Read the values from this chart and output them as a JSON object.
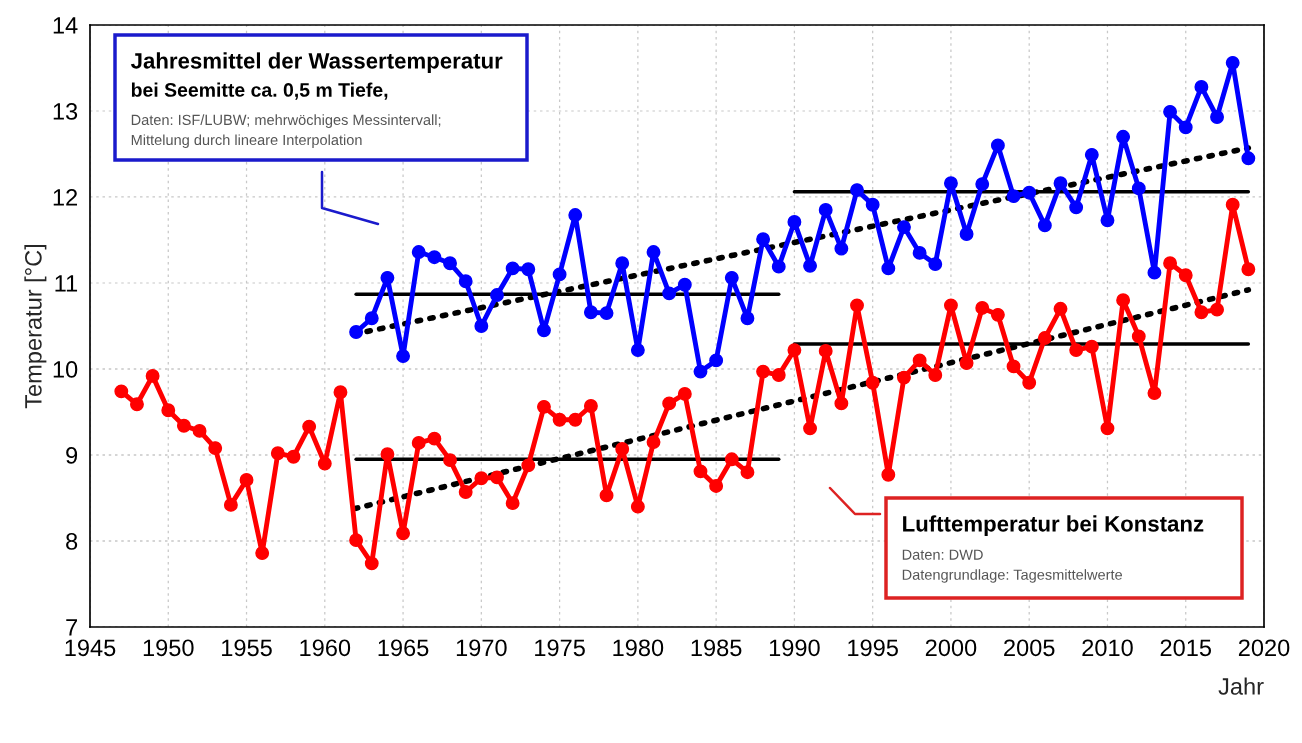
{
  "chart_data": {
    "type": "line",
    "xlabel": "Jahr",
    "ylabel": "Temperatur [°C]",
    "xlim": [
      1945,
      2020
    ],
    "xticks": [
      1945,
      1950,
      1955,
      1960,
      1965,
      1970,
      1975,
      1980,
      1985,
      1990,
      1995,
      2000,
      2005,
      2010,
      2015,
      2020
    ],
    "ylim": [
      7,
      14
    ],
    "yticks": [
      7,
      8,
      9,
      10,
      11,
      12,
      13,
      14
    ],
    "grid": true,
    "marker": "circle",
    "line_style": "solid",
    "series": [
      {
        "color": "#0000ff",
        "x": [
          1962,
          1963,
          1964,
          1965,
          1966,
          1967,
          1968,
          1969,
          1970,
          1971,
          1972,
          1973,
          1974,
          1975,
          1976,
          1977,
          1978,
          1979,
          1980,
          1981,
          1982,
          1983,
          1984,
          1985,
          1986,
          1987,
          1988,
          1989,
          1990,
          1991,
          1992,
          1993,
          1994,
          1995,
          1996,
          1997,
          1998,
          1999,
          2000,
          2001,
          2002,
          2003,
          2004,
          2005,
          2006,
          2007,
          2008,
          2009,
          2010,
          2011,
          2012,
          2013,
          2014,
          2015,
          2016,
          2017,
          2018,
          2019
        ],
        "values": [
          10.43,
          10.59,
          11.06,
          10.15,
          11.36,
          11.3,
          11.23,
          11.02,
          10.5,
          10.86,
          11.17,
          11.16,
          10.45,
          11.1,
          11.79,
          10.66,
          10.65,
          11.23,
          10.22,
          11.36,
          10.88,
          10.98,
          9.97,
          10.1,
          11.06,
          10.59,
          11.51,
          11.19,
          11.71,
          11.2,
          11.85,
          11.4,
          12.08,
          11.91,
          11.17,
          11.65,
          11.35,
          11.22,
          12.16,
          11.57,
          12.15,
          12.6,
          12.01,
          12.05,
          11.67,
          12.16,
          11.88,
          12.49,
          11.73,
          12.7,
          12.1,
          11.12,
          12.99,
          12.81,
          13.28,
          12.93,
          13.56,
          12.45
        ]
      },
      {
        "color": "#ff0000",
        "x": [
          1947,
          1948,
          1949,
          1950,
          1951,
          1952,
          1953,
          1954,
          1955,
          1956,
          1957,
          1958,
          1959,
          1960,
          1961,
          1962,
          1963,
          1964,
          1965,
          1966,
          1967,
          1968,
          1969,
          1970,
          1971,
          1972,
          1973,
          1974,
          1975,
          1976,
          1977,
          1978,
          1979,
          1980,
          1981,
          1982,
          1983,
          1984,
          1985,
          1986,
          1987,
          1988,
          1989,
          1990,
          1991,
          1992,
          1993,
          1994,
          1995,
          1996,
          1997,
          1998,
          1999,
          2000,
          2001,
          2002,
          2003,
          2004,
          2005,
          2006,
          2007,
          2008,
          2009,
          2010,
          2011,
          2012,
          2013,
          2014,
          2015,
          2016,
          2017,
          2018,
          2019
        ],
        "values": [
          9.74,
          9.59,
          9.92,
          9.52,
          9.34,
          9.28,
          9.08,
          8.42,
          8.71,
          7.86,
          9.02,
          8.98,
          9.33,
          8.9,
          9.73,
          8.01,
          7.74,
          9.01,
          8.09,
          9.14,
          9.19,
          8.94,
          8.57,
          8.73,
          8.74,
          8.44,
          8.88,
          9.56,
          9.41,
          9.41,
          9.57,
          8.53,
          9.07,
          8.4,
          9.15,
          9.6,
          9.71,
          8.81,
          8.64,
          8.95,
          8.8,
          9.97,
          9.93,
          10.22,
          9.31,
          10.21,
          9.6,
          10.74,
          9.84,
          8.77,
          9.9,
          10.1,
          9.93,
          10.74,
          10.07,
          10.71,
          10.63,
          10.03,
          9.84,
          10.36,
          10.7,
          10.22,
          10.26,
          9.31,
          10.8,
          10.38,
          9.72,
          11.23,
          11.09,
          10.66,
          10.69,
          11.91,
          11.16
        ]
      },
      {
        "color": "#000000",
        "marker": "none",
        "x": [
          1962,
          1989
        ],
        "values": [
          10.87,
          10.87
        ]
      },
      {
        "color": "#000000",
        "marker": "none",
        "x": [
          1990,
          2019
        ],
        "values": [
          12.06,
          12.06
        ]
      },
      {
        "color": "#000000",
        "marker": "none",
        "x": [
          1962,
          1989
        ],
        "values": [
          8.95,
          8.95
        ]
      },
      {
        "color": "#000000",
        "marker": "none",
        "x": [
          1990,
          2019
        ],
        "values": [
          10.29,
          10.29
        ]
      },
      {
        "color": "#000000",
        "marker": "none",
        "line_style": "dotted",
        "x": [
          1962,
          2019
        ],
        "values": [
          10.41,
          12.57
        ]
      },
      {
        "color": "#000000",
        "marker": "none",
        "line_style": "dotted",
        "x": [
          1962,
          2019
        ],
        "values": [
          8.38,
          10.92
        ]
      }
    ],
    "annotations": [
      "Jahresmittel der Wassertemperatur",
      "bei Seemitte ca. 0,5 m Tiefe,",
      "Daten: ISF/LUBW; mehrwöchiges Messintervall;",
      "Mittelung durch lineare Interpolation",
      "Lufttemperatur bei Konstanz",
      "Daten: DWD",
      "Datengrundlage: Tagesmittelwerte"
    ]
  }
}
